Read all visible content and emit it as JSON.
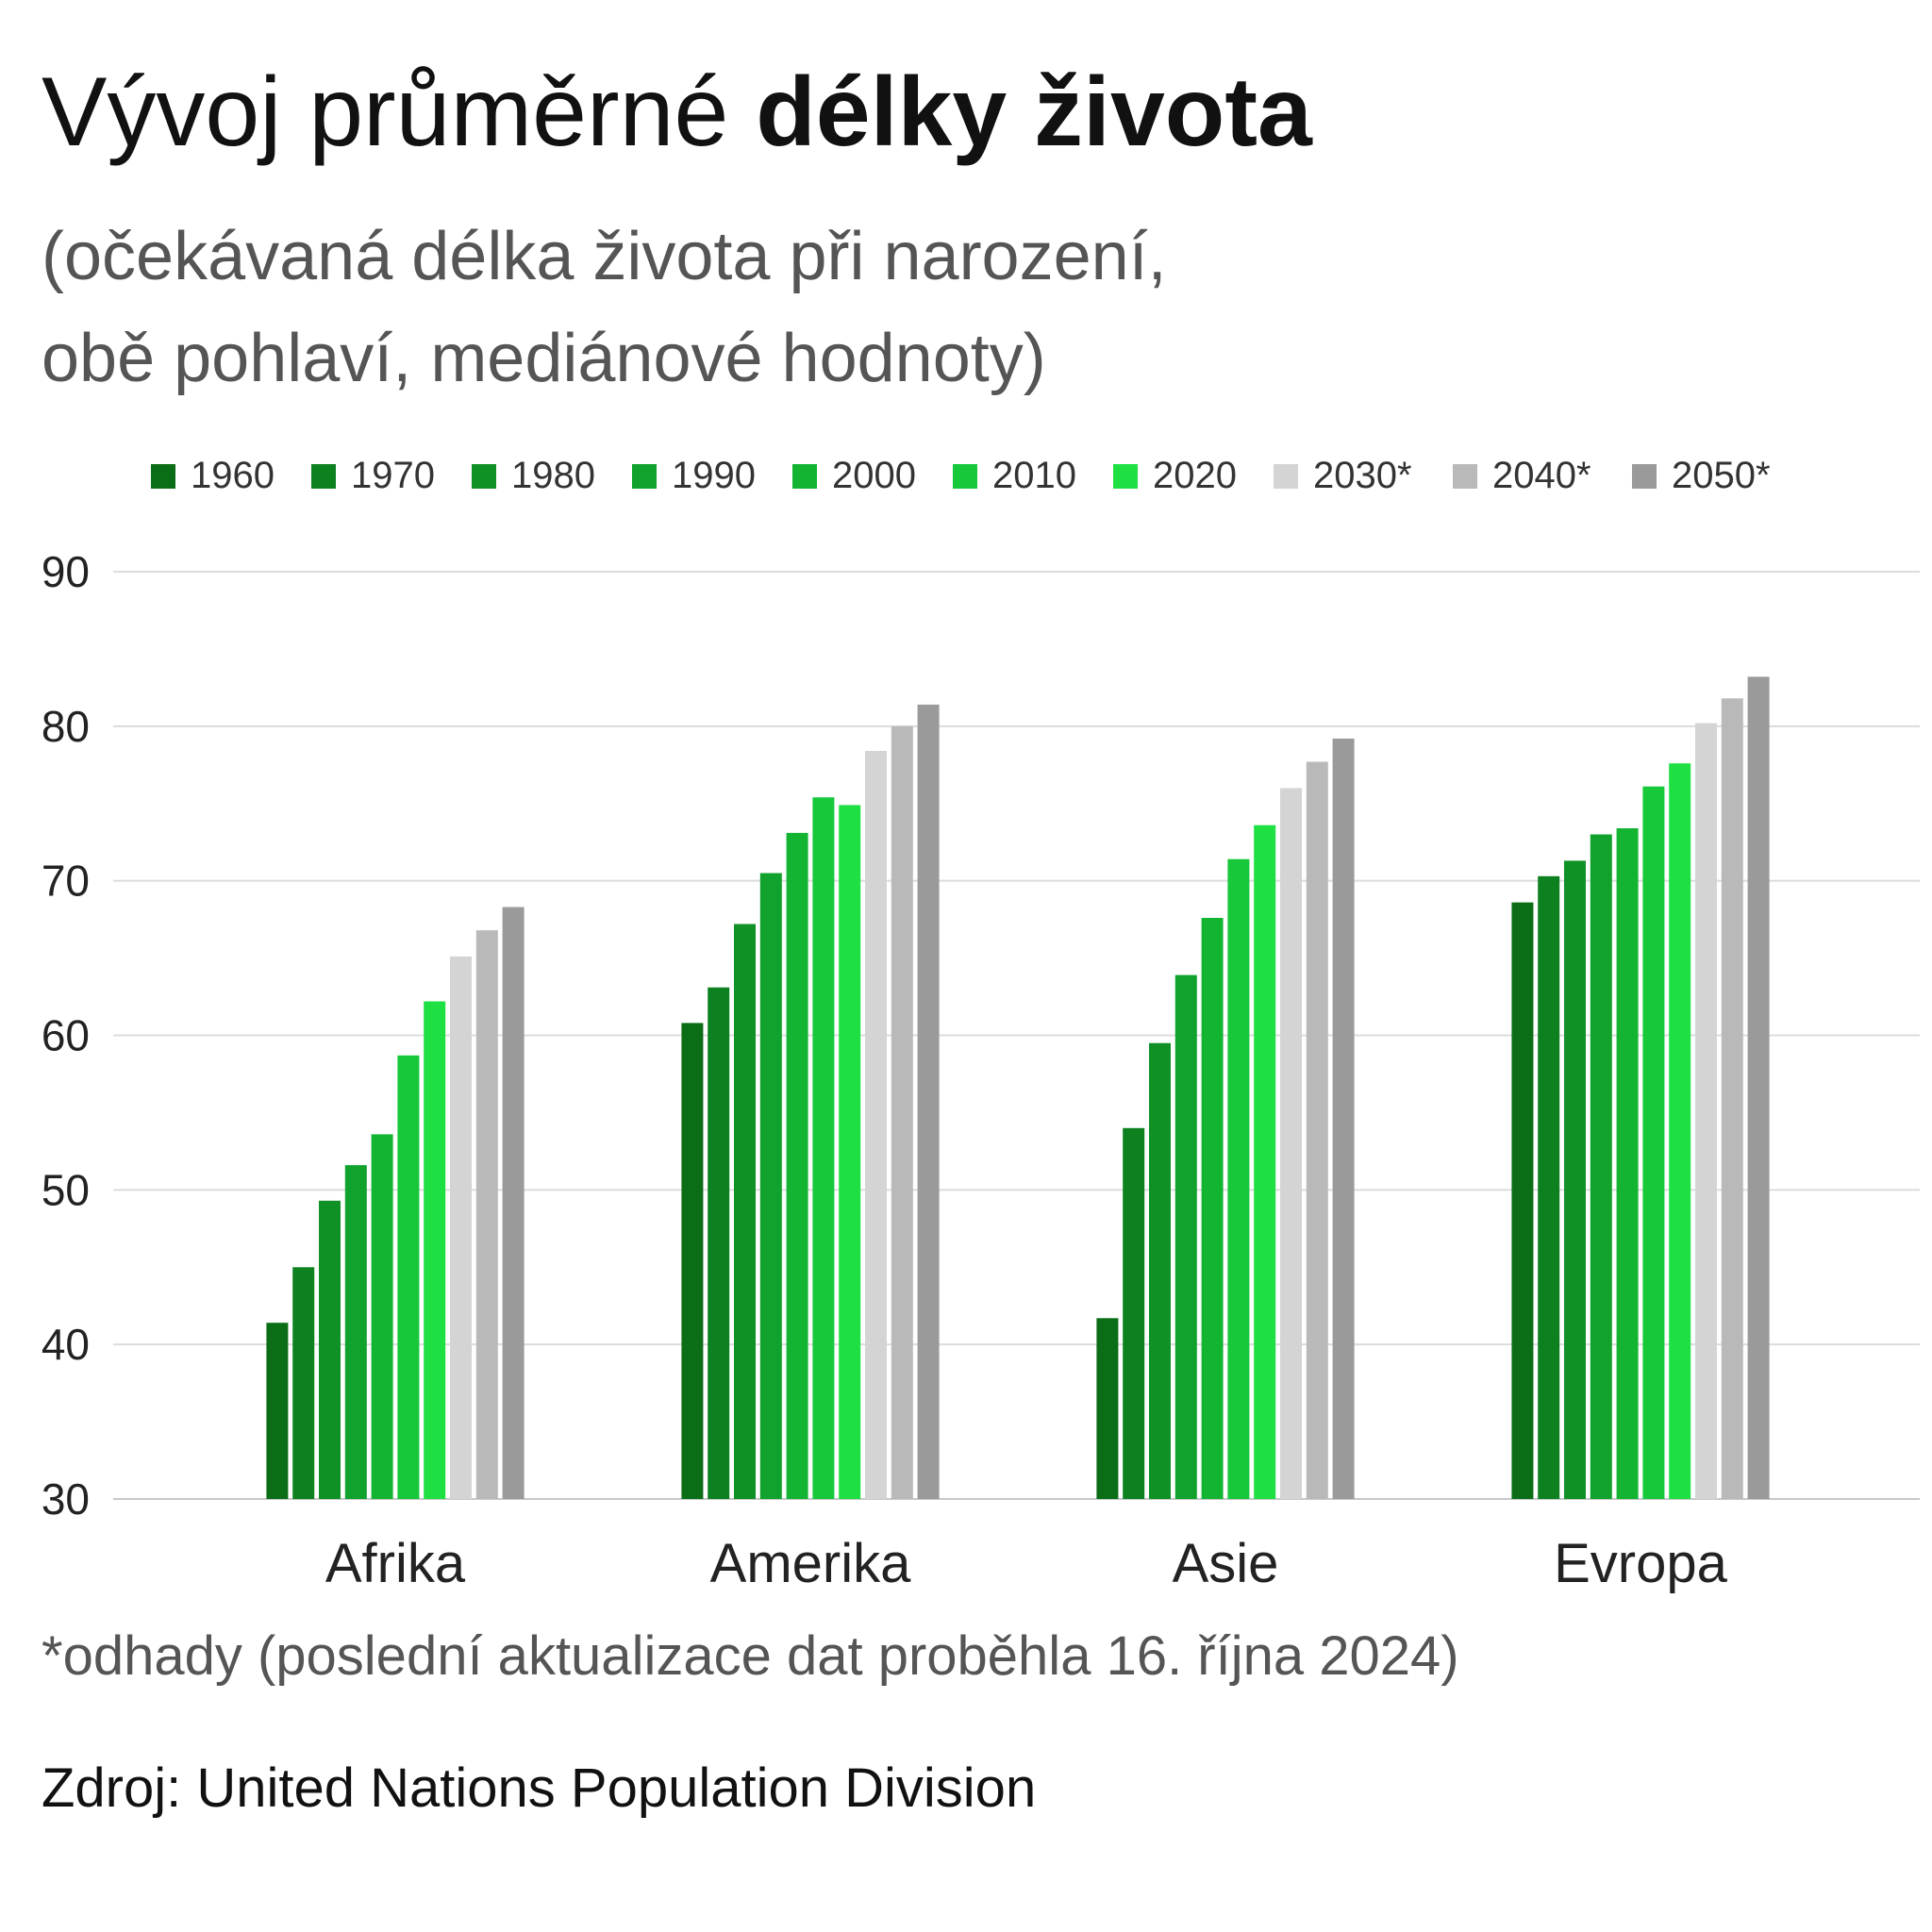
{
  "title": {
    "regular": "Vývoj průměrné",
    "bold": "délky života"
  },
  "subtitle": {
    "line1": "(očekávaná délka života při narození,",
    "line2": "obě pohlaví, mediánové hodnoty)"
  },
  "footnote": "*odhady (poslední aktualizace dat proběhla 16. října 2024)",
  "source": "Zdroj: United Nations Population Division",
  "chart_data": {
    "type": "bar",
    "title": "Vývoj průměrné délky života",
    "subtitle": "(očekávaná délka života při narození, obě pohlaví, mediánové hodnoty)",
    "xlabel": "",
    "ylabel": "",
    "categories": [
      "Afrika",
      "Amerika",
      "Asie",
      "Evropa"
    ],
    "ylim": [
      30,
      90
    ],
    "yticks": [
      30,
      40,
      50,
      60,
      70,
      80,
      90
    ],
    "grid": true,
    "legend_position": "top",
    "series": [
      {
        "name": "1960",
        "color": "#0b6e17",
        "values": [
          41.4,
          60.8,
          41.7,
          68.6
        ]
      },
      {
        "name": "1970",
        "color": "#0d8120",
        "values": [
          45.0,
          63.1,
          54.0,
          70.3
        ]
      },
      {
        "name": "1980",
        "color": "#0f9126",
        "values": [
          49.3,
          67.2,
          59.5,
          71.3
        ]
      },
      {
        "name": "1990",
        "color": "#10a22c",
        "values": [
          51.6,
          70.5,
          63.9,
          73.0
        ]
      },
      {
        "name": "2000",
        "color": "#13b432",
        "values": [
          53.6,
          73.1,
          67.6,
          73.4
        ]
      },
      {
        "name": "2010",
        "color": "#16c83a",
        "values": [
          58.7,
          75.4,
          71.4,
          76.1
        ]
      },
      {
        "name": "2020",
        "color": "#1ee043",
        "values": [
          62.2,
          74.9,
          73.6,
          77.6
        ]
      },
      {
        "name": "2030*",
        "color": "#d4d4d4",
        "values": [
          65.1,
          78.4,
          76.0,
          80.2
        ]
      },
      {
        "name": "2040*",
        "color": "#b9b9b9",
        "values": [
          66.8,
          80.0,
          77.7,
          81.8
        ]
      },
      {
        "name": "2050*",
        "color": "#9a9a9a",
        "values": [
          68.3,
          81.4,
          79.2,
          83.2
        ]
      }
    ]
  }
}
